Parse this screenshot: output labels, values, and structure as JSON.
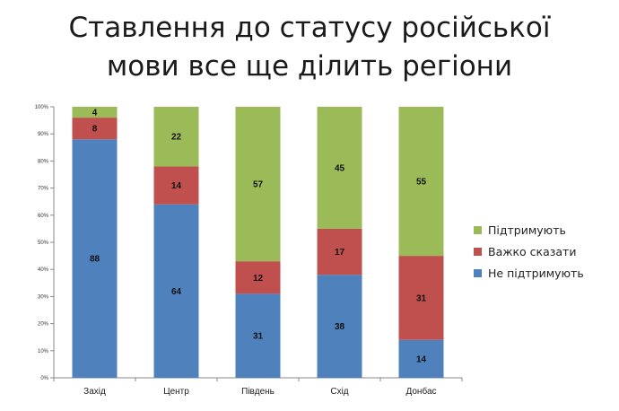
{
  "title_line1": "Ставлення до статусу російської",
  "title_line2": "мови все ще ділить регіони",
  "chart_data": {
    "type": "bar",
    "stacked": true,
    "percent_stacked": true,
    "categories": [
      "Захід",
      "Центр",
      "Південь",
      "Схід",
      "Донбас"
    ],
    "series": [
      {
        "name": "Не підтримують",
        "values": [
          88,
          64,
          31,
          38,
          14
        ],
        "color": "#4f81bd"
      },
      {
        "name": "Важко сказати",
        "values": [
          8,
          14,
          12,
          17,
          31
        ],
        "color": "#c0504d"
      },
      {
        "name": "Підтримують",
        "values": [
          4,
          22,
          57,
          45,
          55
        ],
        "color": "#9bbb59"
      }
    ],
    "data_labels": true,
    "ylim": [
      0,
      100
    ],
    "yticks": [
      "0%",
      "10%",
      "20%",
      "30%",
      "40%",
      "50%",
      "60%",
      "70%",
      "80%",
      "90%",
      "100%"
    ],
    "grid": false,
    "legend_position": "right"
  }
}
